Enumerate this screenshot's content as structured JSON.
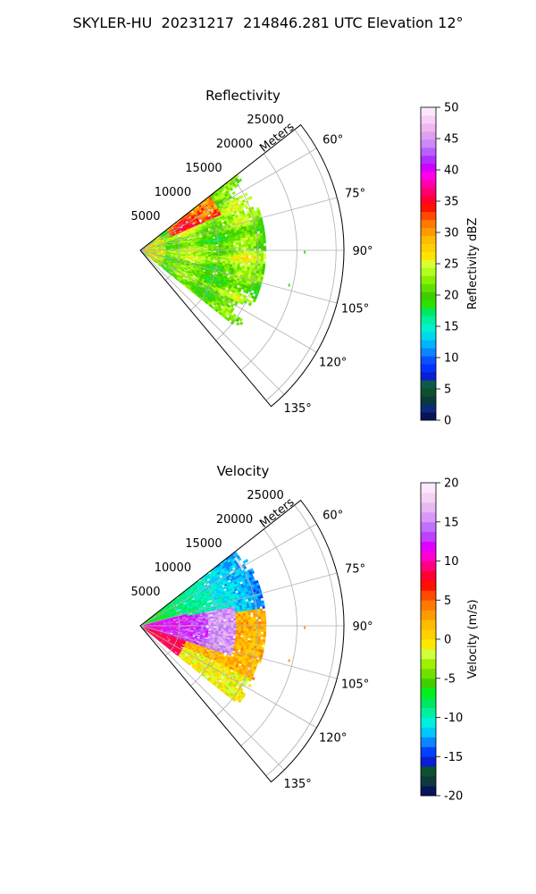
{
  "title": "SKYLER-HU  20231217  214846.281 UTC Elevation 12°",
  "chart_data": [
    {
      "type": "heatmap",
      "subtype": "polar-sector",
      "title": "Reflectivity",
      "range_label": "Meters",
      "range_ticks": [
        5000,
        10000,
        15000,
        20000,
        25000
      ],
      "range_limits_m": [
        0,
        26000
      ],
      "azimuth_ticks_deg": [
        60,
        75,
        90,
        105,
        120,
        135
      ],
      "azimuth_limits_deg": [
        52,
        140
      ],
      "data_azimuth_limits_deg": [
        52,
        128
      ],
      "data_max_range_m": 16000,
      "grid": true,
      "colorbar": {
        "label": "Reflectivity dBZ",
        "min": 0,
        "max": 50,
        "ticks": [
          0,
          5,
          10,
          15,
          20,
          25,
          30,
          35,
          40,
          45,
          50
        ],
        "colors": [
          "#081459",
          "#0c2a7a",
          "#0a3a3a",
          "#0c5030",
          "#0e5a4a",
          "#0a1fd0",
          "#0033ff",
          "#0a50ff",
          "#0a86ff",
          "#00b4ff",
          "#00d8ee",
          "#00f0d0",
          "#00f0a0",
          "#00e860",
          "#2ee000",
          "#3fcc00",
          "#60e000",
          "#88f000",
          "#b0ff20",
          "#dcff30",
          "#ffe400",
          "#ffd000",
          "#ffbb00",
          "#ff9a00",
          "#ff7a00",
          "#ff4a00",
          "#ff1000",
          "#ff0030",
          "#ff0070",
          "#ff00b0",
          "#ff00e8",
          "#d000ff",
          "#b030ff",
          "#b860ff",
          "#cc88f8",
          "#e0a0f0",
          "#f0b8f0",
          "#f8d0f8",
          "#fce8fc"
        ]
      },
      "data_summary": {
        "dominant_range_dbz": [
          18,
          28
        ],
        "high_values_near_radar_dbz": [
          30,
          38
        ],
        "notes": "Broad echo region 52°–128° out to about 16 km; mostly 18–28 dBZ with red/orange 30–38 dBZ along the northern edge and close to the radar."
      }
    },
    {
      "type": "heatmap",
      "subtype": "polar-sector",
      "title": "Velocity",
      "range_label": "Meters",
      "range_ticks": [
        5000,
        10000,
        15000,
        20000,
        25000
      ],
      "range_limits_m": [
        0,
        26000
      ],
      "azimuth_ticks_deg": [
        60,
        75,
        90,
        105,
        120,
        135
      ],
      "azimuth_limits_deg": [
        52,
        140
      ],
      "data_azimuth_limits_deg": [
        52,
        128
      ],
      "data_max_range_m": 16000,
      "grid": true,
      "colorbar": {
        "label": "Velocity (m/s)",
        "min": -20,
        "max": 20,
        "ticks": [
          -20,
          -15,
          -10,
          -5,
          0,
          5,
          10,
          15,
          20
        ],
        "colors": [
          "#081459",
          "#0c3a3a",
          "#0c5030",
          "#0a1fd0",
          "#0040ff",
          "#0a86ff",
          "#00c8ff",
          "#00f0e0",
          "#00f0a0",
          "#00e860",
          "#00f020",
          "#3fd000",
          "#70e000",
          "#a0f000",
          "#d0ff40",
          "#ffe800",
          "#ffd000",
          "#ffbb00",
          "#ff9a00",
          "#ff7a00",
          "#ff4a00",
          "#ff1000",
          "#ff0030",
          "#ff0080",
          "#ff00d0",
          "#e000ff",
          "#c040ff",
          "#c070ff",
          "#d898f8",
          "#e8b8f0",
          "#f4d4f4",
          "#fce8fc"
        ]
      },
      "data_summary": {
        "notes": "Receding (positive, red/magenta up to about +15 m/s) near the radar at 80°–110° azimuth; approaching (negative, green/cyan down to about -12 m/s) at 55°–85°; yellow/light-green near zero on the southern flank."
      }
    }
  ]
}
